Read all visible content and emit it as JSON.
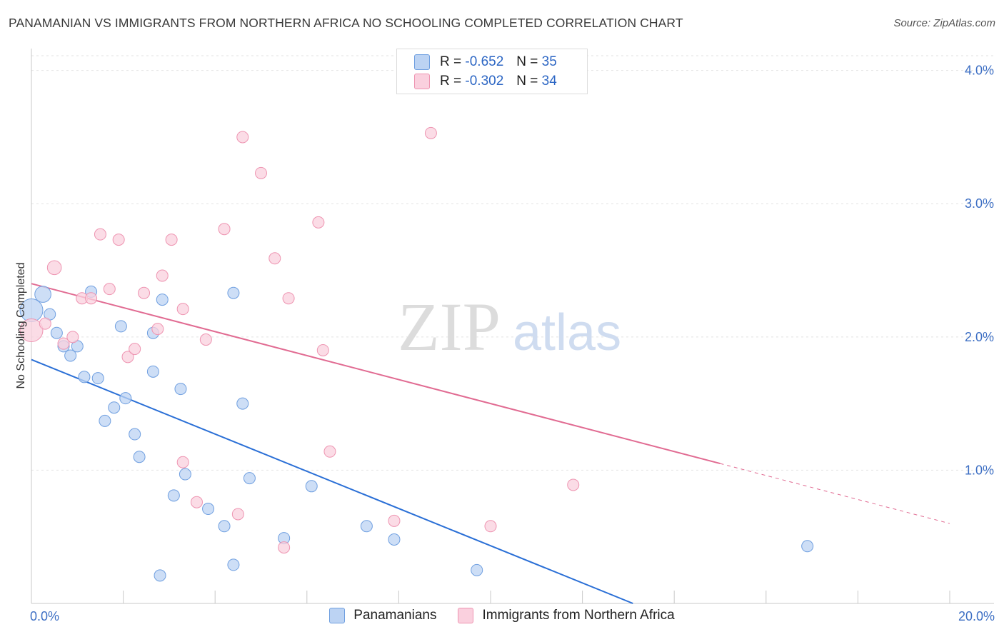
{
  "header": {
    "title": "PANAMANIAN VS IMMIGRANTS FROM NORTHERN AFRICA NO SCHOOLING COMPLETED CORRELATION CHART",
    "source": "Source: ZipAtlas.com"
  },
  "watermark": {
    "zip": "ZIP",
    "atlas": "atlas"
  },
  "legend": {
    "rows": [
      {
        "r_label": "R =",
        "r_value": "-0.652",
        "n_label": "N =",
        "n_value": "35",
        "color": "#a9c6f0"
      },
      {
        "r_label": "R =",
        "r_value": "-0.302",
        "n_label": "N =",
        "n_value": "34",
        "color": "#f7b8cc"
      }
    ]
  },
  "bottom_legend": {
    "items": [
      {
        "label": "Panamanians",
        "color": "#a9c6f0"
      },
      {
        "label": "Immigrants from Northern Africa",
        "color": "#f7b8cc"
      }
    ]
  },
  "chart_data": {
    "type": "scatter",
    "title": "PANAMANIAN VS IMMIGRANTS FROM NORTHERN AFRICA NO SCHOOLING COMPLETED CORRELATION CHART",
    "xlabel": "",
    "ylabel": "No Schooling Completed",
    "xlim": [
      0,
      20
    ],
    "ylim": [
      0,
      4.1
    ],
    "x_tick_labels": [
      "0.0%",
      "20.0%"
    ],
    "y_tick_labels": [
      "1.0%",
      "2.0%",
      "3.0%",
      "4.0%"
    ],
    "y_ticks": [
      1,
      2,
      3,
      4
    ],
    "grid": true,
    "series": [
      {
        "name": "Panamanians",
        "color": "#6f9fe0",
        "fill": "#bcd3f3",
        "line_color": "#2a6fd6",
        "trend": {
          "x0": 0.0,
          "y0": 1.83,
          "x1": 13.1,
          "y1": 0.0,
          "dashed_to": null
        },
        "points": [
          {
            "x": 0.25,
            "y": 2.32,
            "s": 2
          },
          {
            "x": 0.0,
            "y": 2.2,
            "s": 4
          },
          {
            "x": 0.4,
            "y": 2.17,
            "s": 1
          },
          {
            "x": 0.55,
            "y": 2.03,
            "s": 1
          },
          {
            "x": 0.7,
            "y": 1.93,
            "s": 1
          },
          {
            "x": 0.85,
            "y": 1.86,
            "s": 1
          },
          {
            "x": 1.0,
            "y": 1.93,
            "s": 1
          },
          {
            "x": 1.15,
            "y": 1.7,
            "s": 1
          },
          {
            "x": 1.45,
            "y": 1.69,
            "s": 1
          },
          {
            "x": 1.3,
            "y": 2.34,
            "s": 1
          },
          {
            "x": 1.95,
            "y": 2.08,
            "s": 1
          },
          {
            "x": 1.8,
            "y": 1.47,
            "s": 1
          },
          {
            "x": 1.6,
            "y": 1.37,
            "s": 1
          },
          {
            "x": 2.05,
            "y": 1.54,
            "s": 1
          },
          {
            "x": 2.25,
            "y": 1.27,
            "s": 1
          },
          {
            "x": 2.35,
            "y": 1.1,
            "s": 1
          },
          {
            "x": 2.65,
            "y": 1.74,
            "s": 1
          },
          {
            "x": 2.65,
            "y": 2.03,
            "s": 1
          },
          {
            "x": 2.85,
            "y": 2.28,
            "s": 1
          },
          {
            "x": 3.25,
            "y": 1.61,
            "s": 1
          },
          {
            "x": 3.35,
            "y": 0.97,
            "s": 1
          },
          {
            "x": 3.1,
            "y": 0.81,
            "s": 1
          },
          {
            "x": 3.85,
            "y": 0.71,
            "s": 1
          },
          {
            "x": 4.4,
            "y": 2.33,
            "s": 1
          },
          {
            "x": 4.6,
            "y": 1.5,
            "s": 1
          },
          {
            "x": 4.75,
            "y": 0.94,
            "s": 1
          },
          {
            "x": 4.2,
            "y": 0.58,
            "s": 1
          },
          {
            "x": 4.4,
            "y": 0.29,
            "s": 1
          },
          {
            "x": 5.5,
            "y": 0.49,
            "s": 1
          },
          {
            "x": 6.1,
            "y": 0.88,
            "s": 1
          },
          {
            "x": 7.3,
            "y": 0.58,
            "s": 1
          },
          {
            "x": 7.9,
            "y": 0.48,
            "s": 1
          },
          {
            "x": 9.7,
            "y": 0.25,
            "s": 1
          },
          {
            "x": 2.8,
            "y": 0.21,
            "s": 1
          },
          {
            "x": 16.9,
            "y": 0.43,
            "s": 1
          }
        ]
      },
      {
        "name": "Immigrants from Northern Africa",
        "color": "#ee94b1",
        "fill": "#fad0de",
        "line_color": "#e16b92",
        "trend": {
          "x0": 0.0,
          "y0": 2.4,
          "x1": 15.0,
          "y1": 1.05,
          "dashed_to": {
            "x": 20.0,
            "y": 0.6
          }
        },
        "points": [
          {
            "x": 0.0,
            "y": 2.05,
            "s": 4
          },
          {
            "x": 0.3,
            "y": 2.1,
            "s": 1
          },
          {
            "x": 0.5,
            "y": 2.52,
            "s": 1.5
          },
          {
            "x": 0.7,
            "y": 1.95,
            "s": 1
          },
          {
            "x": 0.9,
            "y": 2.0,
            "s": 1
          },
          {
            "x": 1.1,
            "y": 2.29,
            "s": 1
          },
          {
            "x": 1.3,
            "y": 2.29,
            "s": 1
          },
          {
            "x": 1.5,
            "y": 2.77,
            "s": 1
          },
          {
            "x": 1.7,
            "y": 2.36,
            "s": 1
          },
          {
            "x": 1.9,
            "y": 2.73,
            "s": 1
          },
          {
            "x": 2.1,
            "y": 1.85,
            "s": 1
          },
          {
            "x": 2.25,
            "y": 1.91,
            "s": 1
          },
          {
            "x": 2.45,
            "y": 2.33,
            "s": 1
          },
          {
            "x": 2.75,
            "y": 2.06,
            "s": 1
          },
          {
            "x": 2.85,
            "y": 2.46,
            "s": 1
          },
          {
            "x": 3.05,
            "y": 2.73,
            "s": 1
          },
          {
            "x": 3.3,
            "y": 2.21,
            "s": 1
          },
          {
            "x": 3.3,
            "y": 1.06,
            "s": 1
          },
          {
            "x": 3.6,
            "y": 0.76,
            "s": 1
          },
          {
            "x": 3.8,
            "y": 1.98,
            "s": 1
          },
          {
            "x": 4.2,
            "y": 2.81,
            "s": 1
          },
          {
            "x": 4.5,
            "y": 0.67,
            "s": 1
          },
          {
            "x": 4.6,
            "y": 3.5,
            "s": 1
          },
          {
            "x": 5.0,
            "y": 3.23,
            "s": 1
          },
          {
            "x": 5.3,
            "y": 2.59,
            "s": 1
          },
          {
            "x": 5.5,
            "y": 0.42,
            "s": 1
          },
          {
            "x": 5.6,
            "y": 2.29,
            "s": 1
          },
          {
            "x": 6.25,
            "y": 2.86,
            "s": 1
          },
          {
            "x": 6.35,
            "y": 1.9,
            "s": 1
          },
          {
            "x": 6.5,
            "y": 1.14,
            "s": 1
          },
          {
            "x": 7.9,
            "y": 0.62,
            "s": 1
          },
          {
            "x": 8.7,
            "y": 3.53,
            "s": 1
          },
          {
            "x": 10.0,
            "y": 0.58,
            "s": 1
          },
          {
            "x": 11.8,
            "y": 0.89,
            "s": 1
          }
        ]
      }
    ]
  }
}
